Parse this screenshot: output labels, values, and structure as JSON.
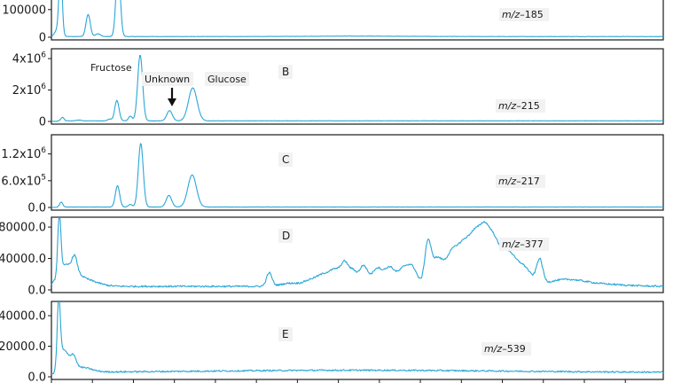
{
  "chart_data": {
    "type": "line",
    "series_color": "#2aa6d6",
    "x_range": [
      0,
      100
    ],
    "x_tick_positions": [
      0,
      6.7,
      13.4,
      20.1,
      26.8,
      33.5,
      40.2,
      46.9,
      53.6,
      60.3,
      67,
      73.7,
      80.4,
      87.1,
      93.8
    ],
    "panels": [
      {
        "letter": "",
        "mz_prefix": "m/z",
        "mz_suffix": "–185",
        "ylim": [
          0,
          250000
        ],
        "yticks": [
          {
            "value": 0,
            "base": "0",
            "exp": ""
          },
          {
            "value": 100000,
            "base": "100000",
            "exp": ""
          }
        ],
        "baseline": 2500,
        "noise": 600,
        "peaks": [
          {
            "x": 1.5,
            "h": 240000,
            "w": 0.25
          },
          {
            "x": 1.1,
            "h": 30000,
            "w": 0.5
          },
          {
            "x": 6.0,
            "h": 80000,
            "w": 0.35
          },
          {
            "x": 7.6,
            "h": 10000,
            "w": 0.4
          },
          {
            "x": 10.9,
            "h": 260000,
            "w": 0.35
          },
          {
            "x": 50,
            "h": 1500,
            "w": 8
          }
        ]
      },
      {
        "letter": "B",
        "mz_prefix": "m/z",
        "mz_suffix": "–215",
        "ylim": [
          0,
          4400000
        ],
        "yticks": [
          {
            "value": 0,
            "base": "0",
            "exp": ""
          },
          {
            "value": 2000000,
            "base": "2x10",
            "exp": "6"
          },
          {
            "value": 4000000,
            "base": "4x10",
            "exp": "6"
          }
        ],
        "baseline": 40000,
        "noise": 8000,
        "peaks": [
          {
            "x": 1.8,
            "h": 220000,
            "w": 0.25
          },
          {
            "x": 4.5,
            "h": 50000,
            "w": 0.4
          },
          {
            "x": 9.5,
            "h": 110000,
            "w": 0.3
          },
          {
            "x": 10.7,
            "h": 1300000,
            "w": 0.35
          },
          {
            "x": 12.9,
            "h": 300000,
            "w": 0.3
          },
          {
            "x": 14.5,
            "h": 4200000,
            "w": 0.4
          },
          {
            "x": 19.3,
            "h": 650000,
            "w": 0.45
          },
          {
            "x": 23.1,
            "h": 2100000,
            "w": 0.7
          }
        ],
        "annotations": {
          "fructose": "Fructose",
          "unknown": "Unknown",
          "glucose": "Glucose"
        }
      },
      {
        "letter": "C",
        "mz_prefix": "m/z",
        "mz_suffix": "–217",
        "ylim": [
          0,
          1550000
        ],
        "yticks": [
          {
            "value": 0,
            "base": "0.0",
            "exp": ""
          },
          {
            "value": 600000,
            "base": "6.0x10",
            "exp": "5"
          },
          {
            "value": 1200000,
            "base": "1.2x10",
            "exp": "6"
          }
        ],
        "baseline": 10000,
        "noise": 3000,
        "peaks": [
          {
            "x": 1.6,
            "h": 110000,
            "w": 0.25
          },
          {
            "x": 10.8,
            "h": 480000,
            "w": 0.35
          },
          {
            "x": 12.9,
            "h": 60000,
            "w": 0.3
          },
          {
            "x": 14.6,
            "h": 1430000,
            "w": 0.4
          },
          {
            "x": 19.2,
            "h": 260000,
            "w": 0.45
          },
          {
            "x": 23.0,
            "h": 720000,
            "w": 0.7
          }
        ]
      },
      {
        "letter": "D",
        "mz_prefix": "m/z",
        "mz_suffix": "–377",
        "ylim": [
          0,
          88000
        ],
        "yticks": [
          {
            "value": 0,
            "base": "0.0",
            "exp": ""
          },
          {
            "value": 40000,
            "base": "40000.0",
            "exp": ""
          },
          {
            "value": 80000,
            "base": "80000.0",
            "exp": ""
          }
        ],
        "baseline": 4500,
        "noise": 1100,
        "peaks": [
          {
            "x": 1.3,
            "h": 75000,
            "w": 0.25
          },
          {
            "x": 2.4,
            "h": 25000,
            "w": 1.5
          },
          {
            "x": 3.8,
            "h": 18000,
            "w": 0.4
          },
          {
            "x": 5.5,
            "h": 8000,
            "w": 2
          },
          {
            "x": 35.6,
            "h": 17000,
            "w": 0.45
          },
          {
            "x": 39,
            "h": 4000,
            "w": 1.5
          },
          {
            "x": 42.5,
            "h": 8000,
            "w": 1.2
          },
          {
            "x": 44.5,
            "h": 12000,
            "w": 1.0
          },
          {
            "x": 46.5,
            "h": 20000,
            "w": 1.0
          },
          {
            "x": 48.0,
            "h": 24000,
            "w": 0.6
          },
          {
            "x": 49.3,
            "h": 18000,
            "w": 0.6
          },
          {
            "x": 51.0,
            "h": 26000,
            "w": 0.7
          },
          {
            "x": 53.2,
            "h": 22000,
            "w": 0.8
          },
          {
            "x": 55.3,
            "h": 24000,
            "w": 0.9
          },
          {
            "x": 57.5,
            "h": 20000,
            "w": 0.8
          },
          {
            "x": 59.0,
            "h": 23000,
            "w": 0.8
          },
          {
            "x": 61.5,
            "h": 48000,
            "w": 0.5
          },
          {
            "x": 63.0,
            "h": 35000,
            "w": 1.0
          },
          {
            "x": 65.5,
            "h": 40000,
            "w": 1.0
          },
          {
            "x": 67.5,
            "h": 48000,
            "w": 1.0
          },
          {
            "x": 69.3,
            "h": 55000,
            "w": 0.9
          },
          {
            "x": 70.8,
            "h": 55000,
            "w": 0.8
          },
          {
            "x": 72.3,
            "h": 52000,
            "w": 0.9
          },
          {
            "x": 74.5,
            "h": 40000,
            "w": 1.1
          },
          {
            "x": 77.0,
            "h": 25000,
            "w": 1.3
          },
          {
            "x": 79.8,
            "h": 30000,
            "w": 0.5
          },
          {
            "x": 84,
            "h": 8000,
            "w": 3
          },
          {
            "x": 90,
            "h": 2500,
            "w": 4
          }
        ]
      },
      {
        "letter": "E",
        "mz_prefix": "m/z",
        "mz_suffix": "–539",
        "ylim": [
          0,
          47000
        ],
        "yticks": [
          {
            "value": 0,
            "base": "0.0",
            "exp": ""
          },
          {
            "value": 20000,
            "base": "20000.0",
            "exp": ""
          },
          {
            "value": 40000,
            "base": "40000.0",
            "exp": ""
          }
        ],
        "baseline": 2800,
        "noise": 500,
        "peaks": [
          {
            "x": 1.2,
            "h": 42000,
            "w": 0.25
          },
          {
            "x": 2.0,
            "h": 14000,
            "w": 0.8
          },
          {
            "x": 3.6,
            "h": 8000,
            "w": 0.45
          },
          {
            "x": 5.0,
            "h": 3000,
            "w": 1.5
          },
          {
            "x": 50,
            "h": 1500,
            "w": 25
          }
        ]
      }
    ]
  }
}
